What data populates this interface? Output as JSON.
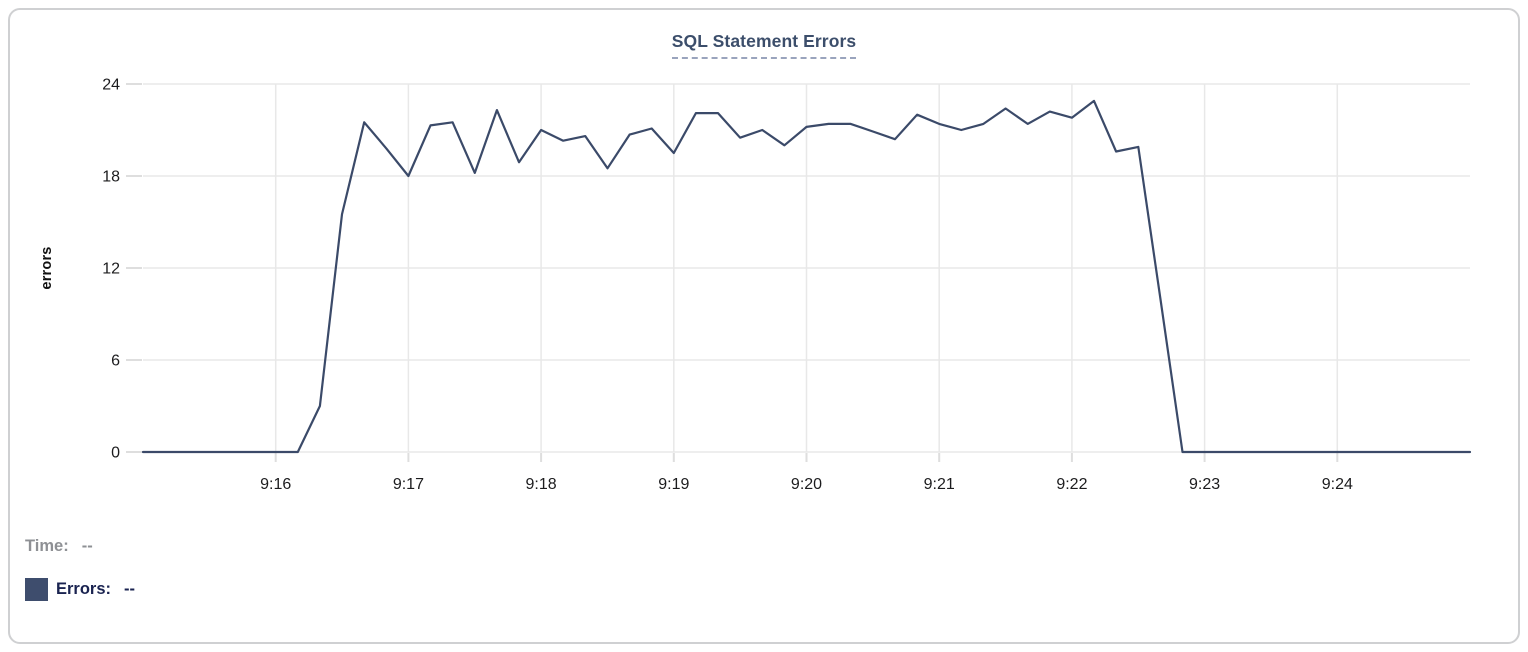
{
  "card": {
    "title": "SQL Statement Errors"
  },
  "readout": {
    "time_label": "Time:",
    "time_value": "--",
    "errors_label": "Errors:",
    "errors_value": "--"
  },
  "colors": {
    "series_line": "#3b4a69",
    "legend_swatch": "#3e4d6d",
    "errors_text": "#1a2350",
    "time_text": "#8e9094",
    "title_text": "#3c4e6b",
    "title_underline": "#9aa4bd",
    "gridline": "#e8e8e8",
    "tick": "#dedede",
    "axis_label_text": "#1c1c1e",
    "card_border": "#cfd0d2",
    "card_background": "#ffffff"
  },
  "chart_data": {
    "type": "line",
    "title": "SQL Statement Errors",
    "xlabel": "",
    "ylabel": "errors",
    "grid": true,
    "legend_position": "none",
    "ylim": [
      0,
      24
    ],
    "y_tick_labels": [
      0,
      6,
      12,
      18,
      24
    ],
    "x_tick_labels": [
      "9:16",
      "9:17",
      "9:18",
      "9:19",
      "9:20",
      "9:21",
      "9:22",
      "9:23",
      "9:24"
    ],
    "x_range": {
      "start": "9:15:00",
      "end": "9:25:00",
      "point_interval_seconds": 10
    },
    "series": [
      {
        "name": "Errors",
        "color": "#3b4a69",
        "values": [
          0,
          0,
          0,
          0,
          0,
          0,
          0,
          0,
          3,
          15.5,
          21.5,
          19.8,
          18,
          21.3,
          21.5,
          18.2,
          22.3,
          18.9,
          21,
          20.3,
          20.6,
          18.5,
          20.7,
          21.1,
          19.5,
          22.1,
          22.1,
          20.5,
          21,
          20,
          21.2,
          21.4,
          21.4,
          20.9,
          20.4,
          22,
          21.4,
          21,
          21.4,
          22.4,
          21.4,
          22.2,
          21.8,
          22.9,
          19.6,
          19.9,
          10,
          0,
          0,
          0,
          0,
          0,
          0,
          0,
          0,
          0,
          0,
          0,
          0,
          0,
          0
        ]
      }
    ]
  }
}
